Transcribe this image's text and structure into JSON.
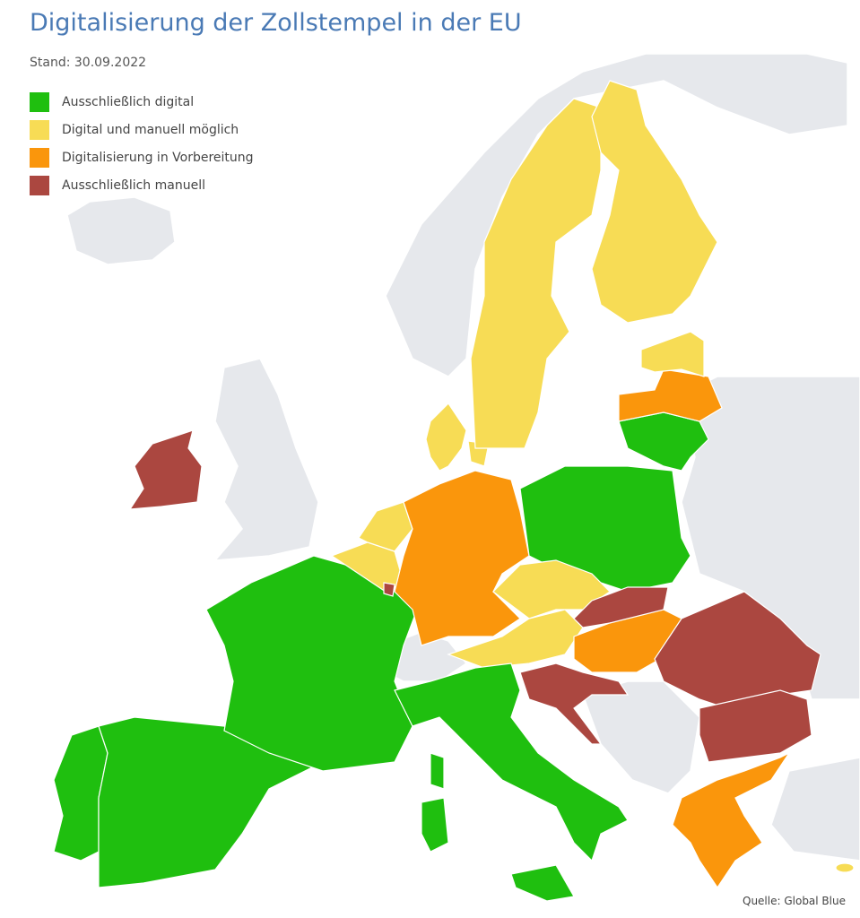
{
  "header": {
    "title": "Digitalisierung der Zollstempel in der EU",
    "subtitle": "Stand: 30.09.2022"
  },
  "legend": {
    "items": [
      {
        "label": "Ausschließlich digital",
        "color": "#1fbf0f"
      },
      {
        "label": "Digital und manuell möglich",
        "color": "#f7dc55"
      },
      {
        "label": "Digitalisierung in Vorbereitung",
        "color": "#fa960c"
      },
      {
        "label": "Ausschließlich manuell",
        "color": "#ab4740"
      }
    ]
  },
  "source": "Quelle: Global Blue"
}
